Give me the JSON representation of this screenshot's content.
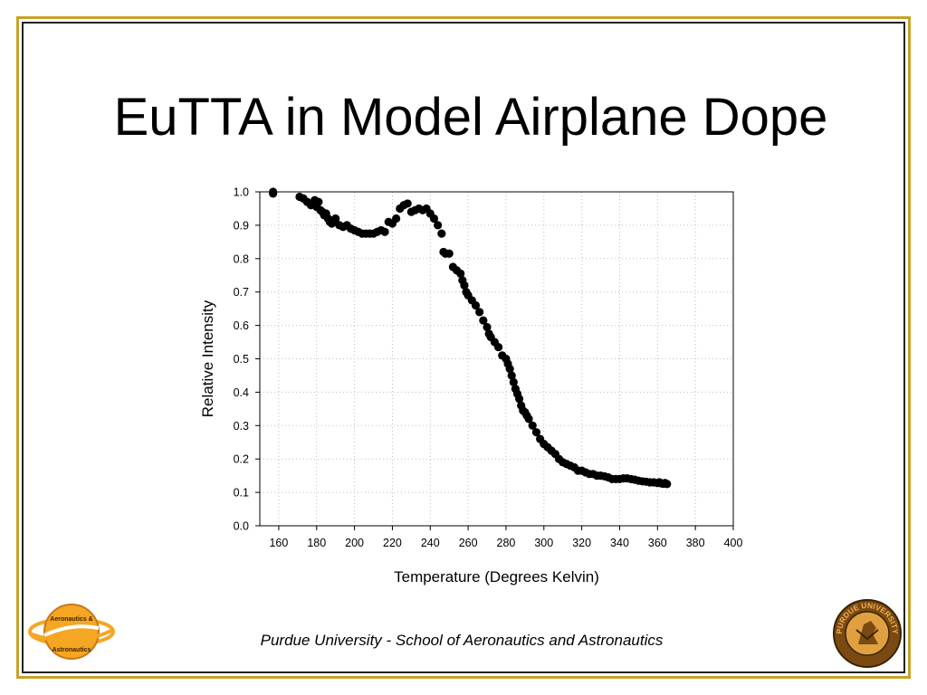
{
  "slide": {
    "title": "EuTTA in Model Airplane Dope",
    "footer": "Purdue University - School of Aeronautics and Astronautics",
    "colors": {
      "frame_gold": "#c9a227",
      "frame_dark": "#222222",
      "points": "#000000"
    },
    "logos": {
      "left": {
        "icon": "aeronautics-astronautics-planet-logo",
        "text_top": "Aeronautics &",
        "text_bottom": "Astronautics",
        "color": "#f5a623"
      },
      "right": {
        "icon": "purdue-university-seal",
        "text": "PURDUE UNIVERSITY",
        "color": "#7a4a12"
      }
    }
  },
  "chart_data": {
    "type": "scatter",
    "title": "",
    "xlabel": "Temperature (Degrees Kelvin)",
    "ylabel": "Relative Intensity",
    "xlim": [
      150,
      400
    ],
    "ylim": [
      0,
      1.0
    ],
    "xticks": [
      160,
      180,
      200,
      220,
      240,
      260,
      280,
      300,
      320,
      340,
      360,
      380,
      400
    ],
    "yticks": [
      "0.0",
      "0.1",
      "0.2",
      "0.3",
      "0.4",
      "0.5",
      "0.6",
      "0.7",
      "0.8",
      "0.9",
      "1.0"
    ],
    "grid": true,
    "legend": "none",
    "series": [
      {
        "x": [
          157,
          157,
          171,
          173,
          175,
          177,
          178,
          179,
          180,
          181,
          182,
          183,
          184,
          185,
          186,
          187,
          188,
          189,
          190,
          192,
          194,
          196,
          198,
          200,
          202,
          204,
          206,
          208,
          210,
          212,
          214,
          216,
          218,
          220,
          222,
          224,
          226,
          228,
          230,
          232,
          234,
          236,
          238,
          240,
          242,
          244,
          246,
          247,
          248,
          250,
          252,
          254,
          256,
          257,
          258,
          259,
          260,
          262,
          264,
          266,
          268,
          270,
          271,
          272,
          274,
          276,
          278,
          280,
          281,
          282,
          283,
          284,
          285,
          286,
          287,
          288,
          289,
          290,
          291,
          292,
          294,
          296,
          298,
          300,
          302,
          304,
          306,
          308,
          310,
          312,
          314,
          316,
          318,
          320,
          322,
          324,
          326,
          328,
          330,
          332,
          334,
          336,
          338,
          340,
          342,
          344,
          346,
          348,
          350,
          352,
          354,
          356,
          358,
          360,
          361,
          362,
          363,
          364,
          365
        ],
        "y": [
          1.0,
          0.995,
          0.985,
          0.98,
          0.97,
          0.96,
          0.965,
          0.975,
          0.955,
          0.97,
          0.945,
          0.94,
          0.93,
          0.935,
          0.92,
          0.91,
          0.905,
          0.915,
          0.92,
          0.9,
          0.895,
          0.9,
          0.89,
          0.885,
          0.88,
          0.875,
          0.875,
          0.875,
          0.875,
          0.88,
          0.885,
          0.88,
          0.91,
          0.905,
          0.92,
          0.95,
          0.96,
          0.965,
          0.94,
          0.945,
          0.95,
          0.945,
          0.95,
          0.935,
          0.92,
          0.9,
          0.875,
          0.82,
          0.815,
          0.815,
          0.775,
          0.765,
          0.755,
          0.735,
          0.72,
          0.7,
          0.69,
          0.675,
          0.66,
          0.64,
          0.615,
          0.595,
          0.575,
          0.565,
          0.55,
          0.535,
          0.51,
          0.5,
          0.485,
          0.47,
          0.45,
          0.43,
          0.41,
          0.395,
          0.38,
          0.36,
          0.345,
          0.34,
          0.33,
          0.32,
          0.3,
          0.28,
          0.26,
          0.245,
          0.235,
          0.225,
          0.215,
          0.2,
          0.19,
          0.185,
          0.18,
          0.175,
          0.165,
          0.165,
          0.16,
          0.155,
          0.155,
          0.15,
          0.15,
          0.148,
          0.145,
          0.14,
          0.14,
          0.14,
          0.142,
          0.142,
          0.14,
          0.138,
          0.135,
          0.133,
          0.132,
          0.13,
          0.13,
          0.128,
          0.13,
          0.127,
          0.126,
          0.128,
          0.125
        ]
      }
    ]
  }
}
